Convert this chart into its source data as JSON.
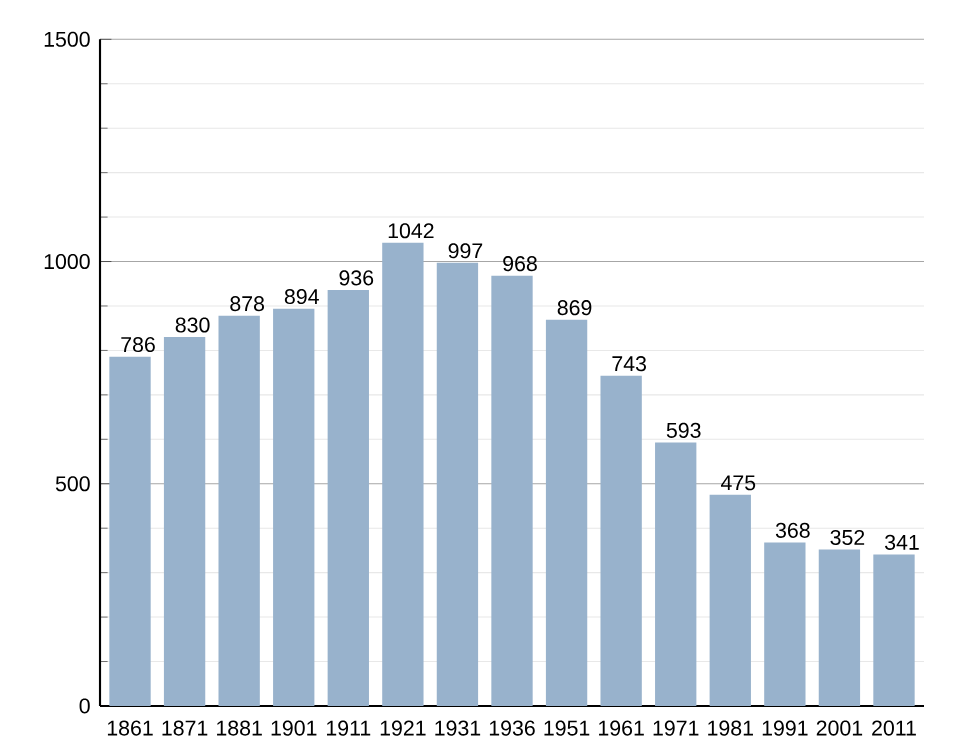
{
  "chart_data": {
    "type": "bar",
    "categories": [
      "1861",
      "1871",
      "1881",
      "1901",
      "1911",
      "1921",
      "1931",
      "1936",
      "1951",
      "1961",
      "1971",
      "1981",
      "1991",
      "2001",
      "2011"
    ],
    "values": [
      786,
      830,
      878,
      894,
      936,
      1042,
      997,
      968,
      869,
      743,
      593,
      475,
      368,
      352,
      341
    ],
    "color": "#98b2cc",
    "ylim": [
      0,
      1500
    ],
    "yticks": [
      0,
      500,
      1000,
      1500
    ],
    "grid": "y",
    "data_labels": true
  }
}
